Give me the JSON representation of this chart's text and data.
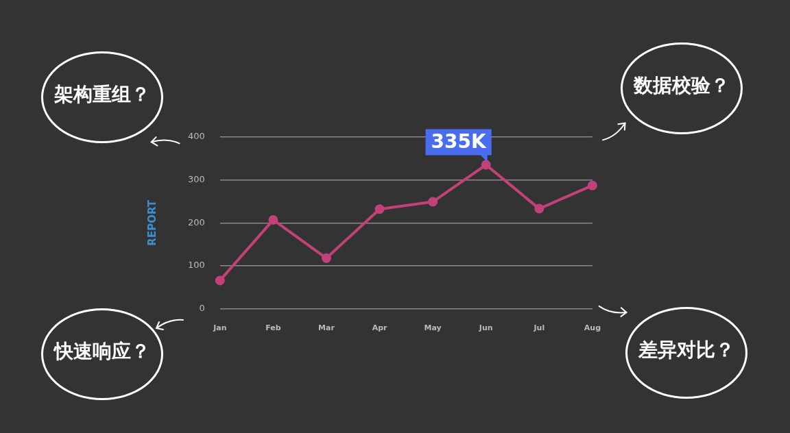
{
  "chart_data": {
    "type": "line",
    "ylabel": "REPORT",
    "categories": [
      "Jan",
      "Feb",
      "Mar",
      "Apr",
      "May",
      "Jun",
      "Jul",
      "Aug"
    ],
    "series": [
      {
        "color": "#c2417a",
        "values": [
          66,
          207,
          118,
          232,
          249,
          335,
          233,
          287
        ],
        "value_labels": [
          null,
          null,
          null,
          null,
          null,
          "335K",
          null,
          null
        ]
      }
    ],
    "ylim": [
      0,
      400
    ],
    "yticks": [
      0,
      100,
      200,
      300,
      400
    ],
    "grid": "y",
    "legend": false,
    "marker": "circle",
    "line_style": "solid",
    "annotations": [
      "架构重组？",
      "数据校验？",
      "快速响应？",
      "差异对比？"
    ]
  }
}
